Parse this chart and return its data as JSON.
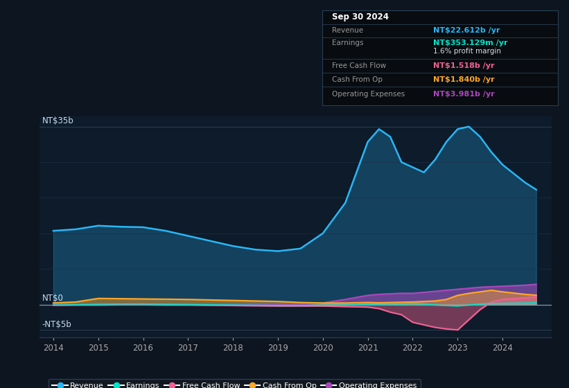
{
  "bg_color": "#0d1520",
  "plot_bg_color": "#0d1b2a",
  "ylabel_top": "NT$35b",
  "ylabel_zero": "NT$0",
  "ylabel_neg": "-NT$5b",
  "x_years": [
    2014.0,
    2014.5,
    2015.0,
    2015.5,
    2016.0,
    2016.5,
    2017.0,
    2017.5,
    2018.0,
    2018.5,
    2019.0,
    2019.5,
    2020.0,
    2020.5,
    2021.0,
    2021.25,
    2021.5,
    2021.75,
    2022.0,
    2022.25,
    2022.5,
    2022.75,
    2023.0,
    2023.25,
    2023.5,
    2023.75,
    2024.0,
    2024.5,
    2024.75
  ],
  "revenue": [
    14.5,
    14.8,
    15.5,
    15.3,
    15.2,
    14.5,
    13.5,
    12.5,
    11.5,
    10.8,
    10.5,
    11.0,
    14.0,
    20.0,
    32.0,
    34.5,
    33.0,
    28.0,
    27.0,
    26.0,
    28.5,
    32.0,
    34.5,
    35.0,
    33.0,
    30.0,
    27.5,
    24.0,
    22.6
  ],
  "earnings": [
    -0.1,
    -0.05,
    0.05,
    0.1,
    0.1,
    0.05,
    0.02,
    -0.05,
    -0.1,
    -0.15,
    -0.2,
    -0.2,
    -0.15,
    -0.1,
    0.05,
    0.1,
    0.15,
    0.1,
    0.2,
    0.1,
    -0.1,
    -0.2,
    -0.3,
    -0.1,
    0.1,
    0.2,
    0.25,
    0.3,
    0.35
  ],
  "free_cash_flow": [
    -0.15,
    -0.1,
    -0.1,
    -0.05,
    -0.05,
    -0.1,
    -0.1,
    -0.15,
    -0.2,
    -0.25,
    -0.3,
    -0.3,
    -0.3,
    -0.4,
    -0.5,
    -0.8,
    -1.5,
    -2.0,
    -3.5,
    -4.0,
    -4.5,
    -4.8,
    -5.0,
    -3.0,
    -1.0,
    0.5,
    1.0,
    1.3,
    1.518
  ],
  "cash_from_op": [
    0.3,
    0.5,
    1.2,
    1.15,
    1.1,
    1.05,
    1.0,
    0.9,
    0.8,
    0.7,
    0.6,
    0.4,
    0.3,
    0.3,
    0.4,
    0.35,
    0.4,
    0.45,
    0.5,
    0.6,
    0.7,
    1.0,
    1.8,
    2.2,
    2.5,
    2.8,
    2.5,
    2.0,
    1.84
  ],
  "operating_expenses": [
    0.0,
    0.0,
    0.0,
    0.0,
    0.0,
    0.0,
    0.0,
    0.0,
    0.0,
    0.0,
    0.0,
    0.0,
    0.3,
    1.0,
    1.8,
    2.0,
    2.1,
    2.2,
    2.2,
    2.4,
    2.6,
    2.8,
    3.0,
    3.2,
    3.4,
    3.5,
    3.6,
    3.8,
    3.981
  ],
  "revenue_color": "#29b6f6",
  "earnings_color": "#00e5cc",
  "free_cash_flow_color": "#f06292",
  "cash_from_op_color": "#ffa726",
  "operating_expenses_color": "#ab47bc",
  "legend_labels": [
    "Revenue",
    "Earnings",
    "Free Cash Flow",
    "Cash From Op",
    "Operating Expenses"
  ],
  "info_box": {
    "date": "Sep 30 2024",
    "revenue_val": "NT$22.612b",
    "earnings_val": "NT$353.129m",
    "profit_margin": "1.6%",
    "free_cash_flow_val": "NT$1.518b",
    "cash_from_op_val": "NT$1.840b",
    "operating_expenses_val": "NT$3.981b"
  },
  "xtick_years": [
    2014,
    2015,
    2016,
    2017,
    2018,
    2019,
    2020,
    2021,
    2022,
    2023,
    2024
  ]
}
